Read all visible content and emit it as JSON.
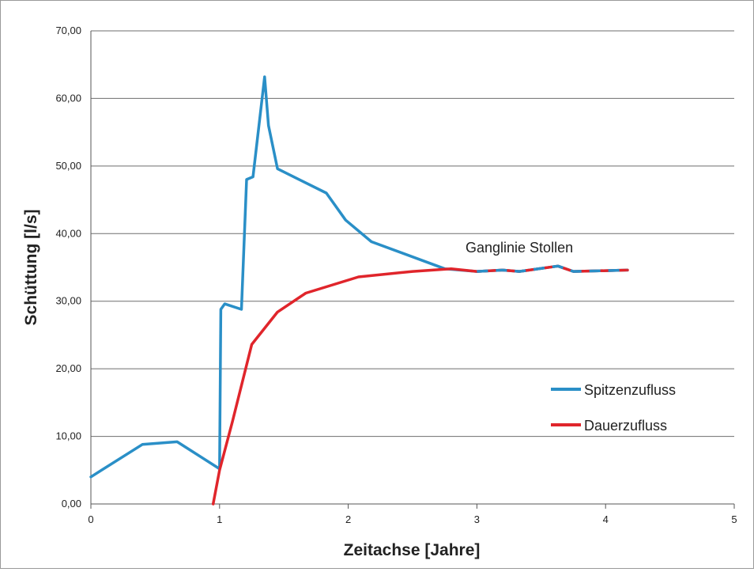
{
  "chart_data": {
    "type": "line",
    "title": "",
    "xlabel": "Zeitachse [Jahre]",
    "ylabel": "Schüttung [l/s]",
    "xlim": [
      0,
      5
    ],
    "ylim": [
      0,
      70
    ],
    "xticks": [
      0,
      1,
      2,
      3,
      4,
      5
    ],
    "xtick_labels": [
      "0",
      "1",
      "2",
      "3",
      "4",
      "5"
    ],
    "yticks": [
      0,
      10,
      20,
      30,
      40,
      50,
      60,
      70
    ],
    "ytick_labels": [
      "0,00",
      "10,00",
      "20,00",
      "30,00",
      "40,00",
      "50,00",
      "60,00",
      "70,00"
    ],
    "grid": "horizontal",
    "legend_position": "right",
    "annotation": "Ganglinie Stollen",
    "series": [
      {
        "name": "Spitzenzufluss",
        "color": "#2a8fc7",
        "points": [
          [
            0.0,
            4.0
          ],
          [
            0.4,
            8.8
          ],
          [
            0.67,
            9.2
          ],
          [
            1.0,
            5.2
          ],
          [
            1.01,
            28.8
          ],
          [
            1.04,
            29.6
          ],
          [
            1.17,
            28.8
          ],
          [
            1.21,
            48.0
          ],
          [
            1.26,
            48.4
          ],
          [
            1.35,
            63.2
          ],
          [
            1.38,
            56.0
          ],
          [
            1.45,
            49.6
          ],
          [
            1.83,
            46.0
          ],
          [
            1.98,
            42.0
          ],
          [
            2.18,
            38.8
          ],
          [
            2.75,
            34.8
          ],
          [
            3.0,
            34.4
          ],
          [
            3.2,
            34.6
          ],
          [
            3.33,
            34.4
          ],
          [
            3.63,
            35.2
          ],
          [
            3.75,
            34.4
          ],
          [
            4.17,
            34.6
          ]
        ]
      },
      {
        "name": "Dauerzufluss",
        "color": "#e0252b",
        "points": [
          [
            0.95,
            0.0
          ],
          [
            1.0,
            5.0
          ],
          [
            1.1,
            12.2
          ],
          [
            1.25,
            23.6
          ],
          [
            1.45,
            28.4
          ],
          [
            1.67,
            31.2
          ],
          [
            2.08,
            33.6
          ],
          [
            2.5,
            34.4
          ],
          [
            2.8,
            34.8
          ],
          [
            3.0,
            34.4
          ],
          [
            3.2,
            34.6
          ],
          [
            3.33,
            34.4
          ],
          [
            3.63,
            35.2
          ],
          [
            3.75,
            34.4
          ],
          [
            4.17,
            34.6
          ]
        ]
      }
    ]
  }
}
